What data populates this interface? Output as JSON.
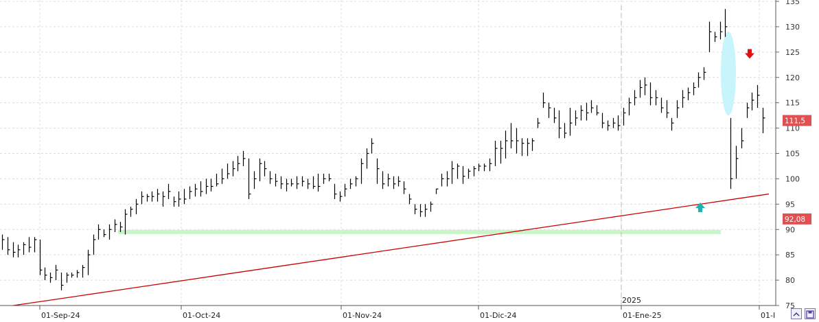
{
  "chart_data": {
    "type": "ohlc",
    "title": "",
    "xlabel": "",
    "ylabel": "",
    "ylim": [
      75,
      135
    ],
    "y_ticks": [
      75,
      80,
      85,
      90,
      95,
      100,
      105,
      110,
      115,
      120,
      125,
      130,
      135
    ],
    "x_tick_labels": [
      "01-Sep-24",
      "01-Oct-24",
      "01-Nov-24",
      "01-Dic-24",
      "01-Ene-25",
      "01-I"
    ],
    "year_label": "2025",
    "grid": true,
    "series": [
      {
        "values": [
          [
            89,
            86,
            88
          ],
          [
            88.5,
            85,
            86
          ],
          [
            87.5,
            84.5,
            85.5
          ],
          [
            87,
            84.5,
            86
          ],
          [
            87.5,
            85,
            87
          ],
          [
            88.5,
            85.5,
            86.5
          ],
          [
            88.5,
            85.5,
            88
          ],
          [
            88,
            81,
            82
          ],
          [
            82.5,
            80,
            81
          ],
          [
            81.5,
            79.5,
            80.5
          ],
          [
            83,
            80,
            82
          ],
          [
            81.5,
            78,
            79
          ],
          [
            81.5,
            79.5,
            81
          ],
          [
            81.5,
            80.5,
            81
          ],
          [
            82,
            80.5,
            81.5
          ],
          [
            83,
            80.5,
            82.5
          ],
          [
            86,
            81,
            85
          ],
          [
            89,
            85,
            88
          ],
          [
            91,
            88,
            90
          ],
          [
            90,
            88.5,
            89
          ],
          [
            91,
            88,
            90
          ],
          [
            92,
            89.5,
            91
          ],
          [
            91.5,
            89.5,
            90.5
          ],
          [
            94,
            89,
            93
          ],
          [
            94.5,
            92.5,
            94
          ],
          [
            96,
            93,
            95
          ],
          [
            97.5,
            95,
            96.5
          ],
          [
            97,
            95.5,
            96.5
          ],
          [
            97.5,
            95.5,
            96.5
          ],
          [
            98,
            95.5,
            97
          ],
          [
            97.5,
            94.5,
            96.5
          ],
          [
            99,
            96,
            97.5
          ],
          [
            96.5,
            94.5,
            95.5
          ],
          [
            97.5,
            94.5,
            96
          ],
          [
            98,
            95,
            96
          ],
          [
            98.5,
            96,
            97.5
          ],
          [
            99,
            96.5,
            98
          ],
          [
            99.5,
            96.5,
            97.5
          ],
          [
            100,
            97,
            98.5
          ],
          [
            100,
            97.5,
            98.5
          ],
          [
            101,
            98.5,
            99
          ],
          [
            102,
            99,
            100
          ],
          [
            103,
            100,
            101
          ],
          [
            103.5,
            100.5,
            102
          ],
          [
            104.5,
            101.5,
            103
          ],
          [
            105.5,
            102.5,
            104
          ],
          [
            104,
            96,
            97
          ],
          [
            101.5,
            98,
            100
          ],
          [
            104,
            99.5,
            103
          ],
          [
            103.5,
            100.5,
            102
          ],
          [
            101.5,
            99,
            100
          ],
          [
            101,
            98.5,
            99.5
          ],
          [
            100.5,
            98,
            99
          ],
          [
            100,
            97.5,
            99
          ],
          [
            100,
            98.5,
            99
          ],
          [
            100.5,
            98,
            99
          ],
          [
            100.5,
            98.5,
            99.5
          ],
          [
            100,
            98,
            99
          ],
          [
            100.5,
            98,
            98.5
          ],
          [
            101,
            97.5,
            98.5
          ],
          [
            101,
            99,
            100
          ],
          [
            101,
            99.5,
            100
          ],
          [
            99,
            96,
            97
          ],
          [
            97.5,
            95.5,
            96.5
          ],
          [
            99,
            96.5,
            98
          ],
          [
            100,
            98,
            99
          ],
          [
            100.5,
            98.5,
            100
          ],
          [
            104,
            99,
            103
          ],
          [
            106,
            102,
            105
          ],
          [
            108,
            105,
            107
          ],
          [
            104,
            99,
            102
          ],
          [
            101.5,
            98,
            99
          ],
          [
            101,
            98.5,
            100
          ],
          [
            100.5,
            98,
            99
          ],
          [
            100.5,
            98.5,
            99.5
          ],
          [
            99.5,
            97,
            98
          ],
          [
            97,
            95,
            96
          ],
          [
            95,
            93,
            94
          ],
          [
            95,
            92.5,
            93.5
          ],
          [
            95,
            92.5,
            94
          ],
          [
            95.5,
            93.5,
            95
          ],
          [
            98,
            97,
            98
          ],
          [
            101,
            98.5,
            100
          ],
          [
            101.5,
            98.5,
            100
          ],
          [
            103.5,
            99,
            102
          ],
          [
            103,
            100,
            102.5
          ],
          [
            102.5,
            99,
            100.5
          ],
          [
            102,
            100,
            101.5
          ],
          [
            102.5,
            100.5,
            102
          ],
          [
            103,
            101.5,
            102.5
          ],
          [
            103,
            101.5,
            102.5
          ],
          [
            104,
            101.5,
            103
          ],
          [
            107.5,
            102.5,
            106
          ],
          [
            107.5,
            103,
            106
          ],
          [
            109.5,
            104,
            107.5
          ],
          [
            111,
            106,
            107.5
          ],
          [
            110,
            105,
            107.5
          ],
          [
            108,
            104.5,
            107
          ],
          [
            108,
            104.5,
            107
          ],
          [
            108,
            105.5,
            107.5
          ],
          [
            112,
            110,
            111
          ],
          [
            117,
            114,
            115
          ],
          [
            115,
            112,
            114
          ],
          [
            114,
            111,
            112
          ],
          [
            113.5,
            108,
            110
          ],
          [
            111,
            108,
            109
          ],
          [
            114,
            108.5,
            111
          ],
          [
            113.5,
            110.5,
            112
          ],
          [
            114.5,
            111.5,
            113.5
          ],
          [
            115,
            111.5,
            113
          ],
          [
            115.5,
            113,
            114
          ],
          [
            114.5,
            112.5,
            113
          ],
          [
            113,
            110,
            111
          ],
          [
            111.5,
            109.5,
            110.5
          ],
          [
            112,
            110,
            111
          ],
          [
            112.5,
            109.5,
            110.5
          ],
          [
            114,
            110.5,
            113
          ],
          [
            116,
            112.5,
            115
          ],
          [
            117.5,
            114.5,
            116
          ],
          [
            119.5,
            116,
            118
          ],
          [
            120,
            116.5,
            118.5
          ],
          [
            119,
            114.5,
            116
          ],
          [
            117.5,
            114.5,
            116
          ],
          [
            116,
            113,
            114
          ],
          [
            115.5,
            112,
            113
          ],
          [
            112,
            109.5,
            111
          ],
          [
            115.5,
            112,
            114
          ],
          [
            117.5,
            114,
            116
          ],
          [
            118,
            115.5,
            117
          ],
          [
            119,
            116.5,
            118
          ],
          [
            121,
            118,
            120
          ],
          [
            122,
            119.5,
            121
          ],
          [
            131,
            125,
            129
          ],
          [
            129,
            127,
            128
          ],
          [
            131,
            127.5,
            129
          ],
          [
            133.5,
            128,
            130
          ],
          [
            112,
            98,
            100
          ],
          [
            106.5,
            100,
            104
          ],
          [
            110,
            106,
            107.5
          ],
          [
            115,
            112,
            114
          ],
          [
            117,
            113.5,
            115.5
          ],
          [
            118.5,
            114,
            116.5
          ],
          [
            114,
            109,
            112
          ]
        ]
      },
      {
        "values": [
          [
            19,
            75
          ],
          [
            70,
            76
          ],
          [
            120,
            77
          ],
          [
            170,
            78
          ],
          [
            220,
            79
          ],
          [
            270,
            80
          ],
          [
            320,
            81
          ],
          [
            370,
            82
          ],
          [
            420,
            83
          ],
          [
            470,
            84
          ],
          [
            520,
            85
          ],
          [
            570,
            86
          ],
          [
            620,
            87
          ],
          [
            670,
            88
          ],
          [
            720,
            89
          ],
          [
            770,
            90
          ],
          [
            820,
            91
          ],
          [
            870,
            92
          ],
          [
            920,
            93
          ],
          [
            970,
            94
          ],
          [
            1020,
            95
          ],
          [
            1070,
            96
          ],
          [
            1120,
            97
          ]
        ]
      }
    ],
    "support_level": 89.5,
    "last_price_label": "111,5",
    "ma_value_label": "92,08",
    "markers": [
      {
        "type": "arrow-down",
        "color": "#e01010",
        "x": 1092,
        "y": 124.5
      },
      {
        "type": "arrow-up",
        "color": "#20b0b0",
        "x": 1020,
        "y": 94.5
      }
    ],
    "highlight_ellipse_color": "#c8f4fc",
    "colors": {
      "bars": "#000000",
      "moving_average": "#cc0000",
      "support": "#c9f5c9",
      "grid": "#dcdcdc",
      "price_tag": "#e05050"
    }
  }
}
